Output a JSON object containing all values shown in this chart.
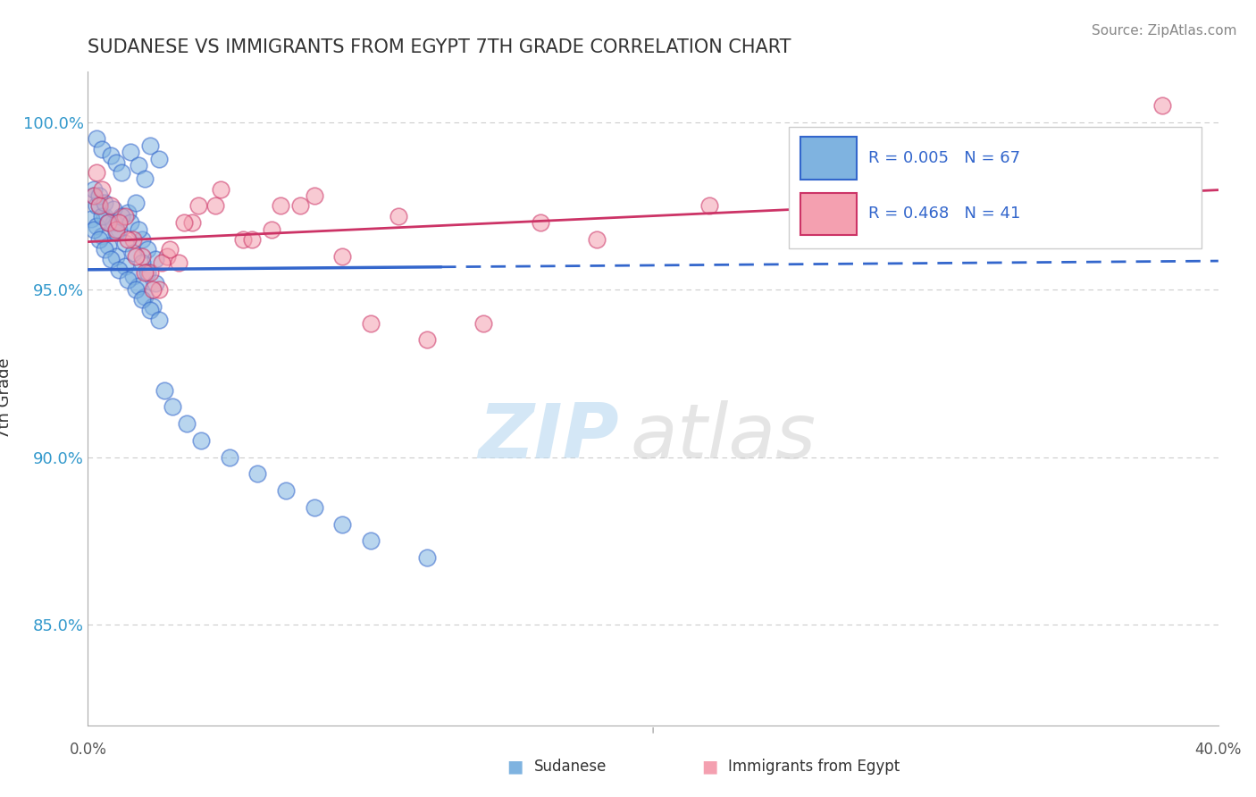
{
  "title": "SUDANESE VS IMMIGRANTS FROM EGYPT 7TH GRADE CORRELATION CHART",
  "source": "Source: ZipAtlas.com",
  "ylabel": "7th Grade",
  "xlim": [
    0.0,
    40.0
  ],
  "ylim": [
    82.0,
    101.5
  ],
  "yticks": [
    85.0,
    90.0,
    95.0,
    100.0
  ],
  "ytick_labels": [
    "85.0%",
    "90.0%",
    "95.0%",
    "100.0%"
  ],
  "trend1_color": "#3366cc",
  "trend2_color": "#cc3366",
  "dot1_color": "#7fb3e0",
  "dot2_color": "#f4a0b0",
  "grid_color": "#cccccc",
  "background_color": "#ffffff",
  "watermark_zip": "ZIP",
  "watermark_atlas": "atlas",
  "sudanese_x": [
    0.3,
    0.5,
    0.8,
    1.0,
    1.2,
    1.5,
    1.8,
    2.0,
    2.2,
    2.5,
    0.2,
    0.4,
    0.6,
    0.9,
    1.1,
    1.4,
    1.7,
    1.9,
    2.1,
    2.4,
    0.1,
    0.3,
    0.5,
    0.7,
    1.0,
    1.3,
    1.6,
    1.8,
    2.0,
    2.3,
    0.2,
    0.4,
    0.6,
    0.8,
    1.1,
    1.4,
    1.7,
    1.9,
    2.2,
    2.5,
    0.3,
    0.5,
    0.7,
    1.0,
    1.3,
    1.6,
    1.9,
    2.1,
    2.4,
    2.7,
    3.0,
    3.5,
    4.0,
    5.0,
    6.0,
    7.0,
    8.0,
    9.0,
    10.0,
    12.0,
    0.2,
    0.4,
    0.6,
    0.9,
    1.2,
    1.5,
    1.8
  ],
  "sudanese_y": [
    99.5,
    99.2,
    99.0,
    98.8,
    98.5,
    99.1,
    98.7,
    98.3,
    99.3,
    98.9,
    97.8,
    97.5,
    97.2,
    97.0,
    96.8,
    97.3,
    97.6,
    96.5,
    96.2,
    95.9,
    97.1,
    96.9,
    96.6,
    96.3,
    96.0,
    95.7,
    95.4,
    95.1,
    94.8,
    94.5,
    96.8,
    96.5,
    96.2,
    95.9,
    95.6,
    95.3,
    95.0,
    94.7,
    94.4,
    94.1,
    97.5,
    97.2,
    97.0,
    96.7,
    96.4,
    96.1,
    95.8,
    95.5,
    95.2,
    92.0,
    91.5,
    91.0,
    90.5,
    90.0,
    89.5,
    89.0,
    88.5,
    88.0,
    87.5,
    87.0,
    98.0,
    97.8,
    97.6,
    97.4,
    97.2,
    97.0,
    96.8
  ],
  "egypt_x": [
    0.2,
    0.4,
    0.7,
    1.0,
    1.3,
    1.6,
    1.9,
    2.2,
    2.5,
    2.8,
    3.2,
    3.7,
    4.5,
    5.5,
    6.5,
    7.5,
    9.0,
    11.0,
    14.0,
    18.0,
    0.3,
    0.5,
    0.8,
    1.1,
    1.4,
    1.7,
    2.0,
    2.3,
    2.6,
    2.9,
    3.4,
    3.9,
    4.7,
    5.8,
    6.8,
    8.0,
    10.0,
    12.0,
    16.0,
    22.0,
    38.0
  ],
  "egypt_y": [
    97.8,
    97.5,
    97.0,
    96.8,
    97.2,
    96.5,
    96.0,
    95.5,
    95.0,
    96.0,
    95.8,
    97.0,
    97.5,
    96.5,
    96.8,
    97.5,
    96.0,
    97.2,
    94.0,
    96.5,
    98.5,
    98.0,
    97.5,
    97.0,
    96.5,
    96.0,
    95.5,
    95.0,
    95.8,
    96.2,
    97.0,
    97.5,
    98.0,
    96.5,
    97.5,
    97.8,
    94.0,
    93.5,
    97.0,
    97.5,
    100.5
  ]
}
